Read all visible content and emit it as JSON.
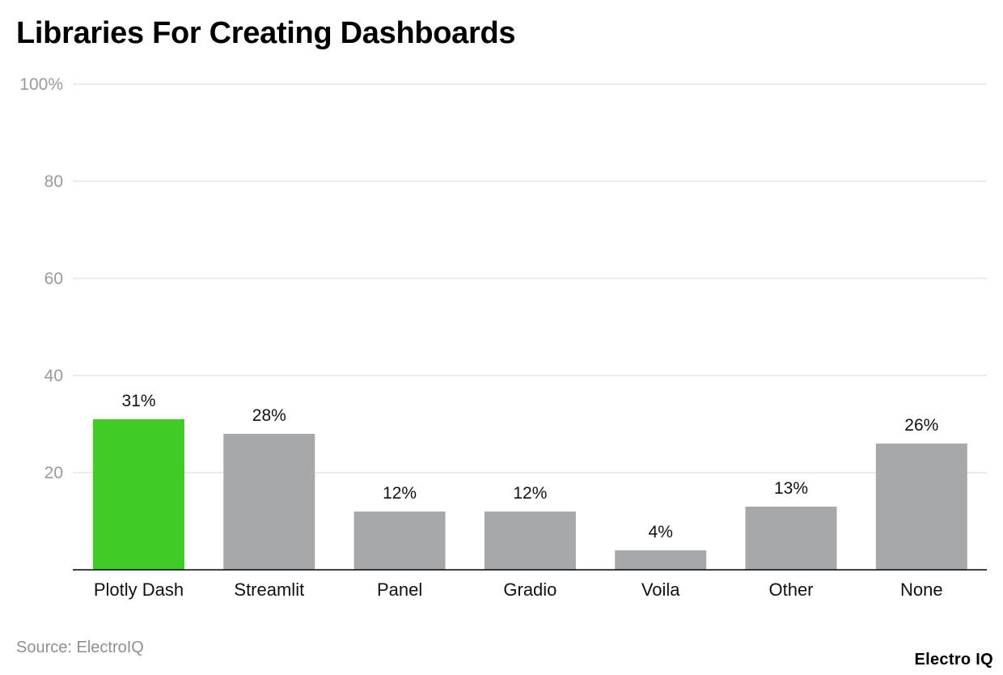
{
  "colors": {
    "highlight": "#3fcc27",
    "bar": "#a7a8aa",
    "grid": "#dedede",
    "axis": "#000000",
    "tick_text": "#9a9a9a",
    "label_text": "#111111"
  },
  "chart_data": {
    "type": "bar",
    "title": "Libraries For Creating Dashboards",
    "categories": [
      "Plotly Dash",
      "Streamlit",
      "Panel",
      "Gradio",
      "Voila",
      "Other",
      "None"
    ],
    "values": [
      31,
      28,
      12,
      12,
      4,
      13,
      26
    ],
    "value_labels": [
      "31%",
      "28%",
      "12%",
      "12%",
      "4%",
      "13%",
      "26%"
    ],
    "highlighted_category": "Plotly Dash",
    "ylim": [
      0,
      100
    ],
    "yticks": [
      20,
      40,
      60,
      80,
      100
    ],
    "ytick_labels": [
      "20",
      "40",
      "60",
      "80",
      "100%"
    ],
    "grid": true,
    "xlabel": "",
    "ylabel": ""
  },
  "footer": {
    "source": "Source: ElectroIQ",
    "brand": "Electro IQ"
  }
}
